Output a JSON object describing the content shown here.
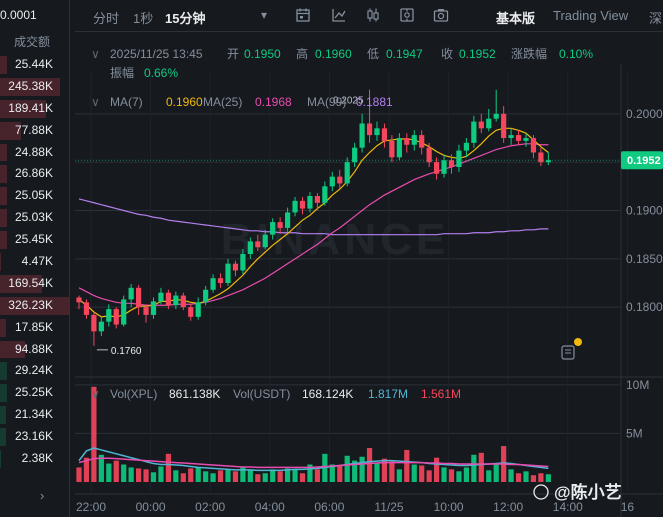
{
  "left_panel": {
    "top_value": "0.0001",
    "header": "成交额",
    "rows": [
      {
        "value": "25.44K",
        "side": "sell",
        "fill": 0.1
      },
      {
        "value": "245.38K",
        "side": "sell",
        "fill": 0.85
      },
      {
        "value": "189.41K",
        "side": "sell",
        "fill": 0.65
      },
      {
        "value": "77.88K",
        "side": "sell",
        "fill": 0.3
      },
      {
        "value": "24.88K",
        "side": "sell",
        "fill": 0.1
      },
      {
        "value": "26.86K",
        "side": "sell",
        "fill": 0.1
      },
      {
        "value": "25.05K",
        "side": "sell",
        "fill": 0.1
      },
      {
        "value": "25.03K",
        "side": "sell",
        "fill": 0.1
      },
      {
        "value": "25.45K",
        "side": "sell",
        "fill": 0.1
      },
      {
        "value": "4.47K",
        "side": "sell",
        "fill": 0.02
      },
      {
        "value": "169.54K",
        "side": "sell",
        "fill": 0.6
      },
      {
        "value": "326.23K",
        "side": "sell",
        "fill": 1.0
      },
      {
        "value": "17.85K",
        "side": "sell",
        "fill": 0.08
      },
      {
        "value": "94.88K",
        "side": "sell",
        "fill": 0.35
      },
      {
        "value": "29.24K",
        "side": "buy",
        "fill": 0.1
      },
      {
        "value": "25.25K",
        "side": "buy",
        "fill": 0.1
      },
      {
        "value": "21.34K",
        "side": "buy",
        "fill": 0.08
      },
      {
        "value": "23.16K",
        "side": "buy",
        "fill": 0.08
      },
      {
        "value": "2.38K",
        "side": "buy",
        "fill": 0.02
      }
    ],
    "arrow": "›"
  },
  "toolbar": {
    "items": [
      {
        "label": "分时",
        "active": false
      },
      {
        "label": "1秒",
        "active": false
      },
      {
        "label": "15分钟",
        "active": true
      }
    ],
    "dropdown": "▾",
    "tools": [
      "calendar-icon",
      "line-tool-icon",
      "candle-type-icon",
      "settings-icon",
      "camera-icon"
    ],
    "views": [
      {
        "label": "基本版",
        "active": true
      },
      {
        "label": "Trading View",
        "active": false
      },
      {
        "label": "深",
        "active": false
      }
    ]
  },
  "ohlc": {
    "time": "2025/11/25 13:45",
    "open_label": "开",
    "open": "0.1950",
    "high_label": "高",
    "high": "0.1960",
    "low_label": "低",
    "low": "0.1947",
    "close_label": "收",
    "close": "0.1952",
    "change_label": "涨跌幅",
    "change": "0.10%",
    "amp_label": "振幅",
    "amp": "0.66%"
  },
  "ma_legend": [
    {
      "label": "MA(7)",
      "value": "0.1960",
      "color": "#f0b90b"
    },
    {
      "label": "MA(25)",
      "value": "0.1968",
      "color": "#e84cb0"
    },
    {
      "label": "MA(99)",
      "value": "0.1881",
      "color": "#b47ff0"
    }
  ],
  "vol_legend": {
    "label1": "Vol(XPL)",
    "value1": "861.138K",
    "label2": "Vol(USDT)",
    "value2": "168.124K",
    "v3": "1.817M",
    "v3_color": "#4fb6d4",
    "v4": "1.561M",
    "v4_color": "#f6465d"
  },
  "watermark": "BINANCE",
  "collapse_toggle": "∨",
  "footer_watermark": "@陈小艺",
  "chart_data": {
    "type": "candlestick",
    "colors": {
      "up": "#0ecb81",
      "down": "#f6465d",
      "bg": "#161a1e",
      "grid": "#2b3139"
    },
    "ylim": [
      0.1735,
      0.2035
    ],
    "y_ticks": [
      0.2,
      0.195,
      0.19,
      0.185,
      0.18
    ],
    "y_tick_labels": [
      "0.2000",
      "0.195",
      "0.1900",
      "0.1850",
      "0.1800"
    ],
    "current_price": "0.1952",
    "high_marker": "0.2025",
    "low_marker": "0.1760",
    "x_labels": [
      "22:00",
      "00:00",
      "02:00",
      "04:00",
      "06:00",
      "11/25",
      "10:00",
      "12:00",
      "14:00",
      "16"
    ],
    "x_label_index": [
      0,
      8,
      16,
      24,
      32,
      40,
      48,
      56,
      64,
      72
    ],
    "candles": [
      [
        0.181,
        0.1805,
        0.1812,
        0.1798
      ],
      [
        0.1805,
        0.1792,
        0.1808,
        0.1788
      ],
      [
        0.1792,
        0.1775,
        0.1795,
        0.176
      ],
      [
        0.1775,
        0.1785,
        0.179,
        0.177
      ],
      [
        0.1785,
        0.1798,
        0.1803,
        0.178
      ],
      [
        0.1798,
        0.1782,
        0.18,
        0.1778
      ],
      [
        0.1782,
        0.1808,
        0.1812,
        0.178
      ],
      [
        0.1808,
        0.182,
        0.1824,
        0.18
      ],
      [
        0.182,
        0.18,
        0.1823,
        0.1792
      ],
      [
        0.18,
        0.1792,
        0.1803,
        0.1784
      ],
      [
        0.1792,
        0.1806,
        0.181,
        0.1788
      ],
      [
        0.1806,
        0.1815,
        0.182,
        0.1803
      ],
      [
        0.1815,
        0.1802,
        0.1818,
        0.1798
      ],
      [
        0.1802,
        0.1812,
        0.1816,
        0.1798
      ],
      [
        0.1812,
        0.18,
        0.1815,
        0.1797
      ],
      [
        0.18,
        0.179,
        0.1803,
        0.1786
      ],
      [
        0.179,
        0.1805,
        0.181,
        0.1787
      ],
      [
        0.1805,
        0.1818,
        0.1822,
        0.1802
      ],
      [
        0.1818,
        0.183,
        0.1834,
        0.1815
      ],
      [
        0.183,
        0.1825,
        0.1835,
        0.182
      ],
      [
        0.1825,
        0.1845,
        0.185,
        0.1822
      ],
      [
        0.1845,
        0.1838,
        0.1848,
        0.1832
      ],
      [
        0.1838,
        0.1855,
        0.186,
        0.1834
      ],
      [
        0.1855,
        0.1868,
        0.1872,
        0.185
      ],
      [
        0.1868,
        0.1862,
        0.1875,
        0.1858
      ],
      [
        0.1862,
        0.1875,
        0.188,
        0.186
      ],
      [
        0.1875,
        0.1888,
        0.1892,
        0.187
      ],
      [
        0.1888,
        0.1882,
        0.1893,
        0.1876
      ],
      [
        0.1882,
        0.1898,
        0.1903,
        0.1878
      ],
      [
        0.1898,
        0.191,
        0.1914,
        0.1894
      ],
      [
        0.191,
        0.1902,
        0.1914,
        0.1896
      ],
      [
        0.1902,
        0.1915,
        0.1919,
        0.1898
      ],
      [
        0.1915,
        0.1908,
        0.1918,
        0.19
      ],
      [
        0.1908,
        0.1925,
        0.193,
        0.1905
      ],
      [
        0.1925,
        0.1935,
        0.194,
        0.192
      ],
      [
        0.1935,
        0.1928,
        0.1942,
        0.1923
      ],
      [
        0.1928,
        0.195,
        0.1955,
        0.1925
      ],
      [
        0.195,
        0.1965,
        0.197,
        0.1945
      ],
      [
        0.1965,
        0.199,
        0.2,
        0.196
      ],
      [
        0.199,
        0.1978,
        0.2025,
        0.197
      ],
      [
        0.1978,
        0.1985,
        0.1992,
        0.1972
      ],
      [
        0.1985,
        0.1972,
        0.199,
        0.1965
      ],
      [
        0.1972,
        0.1955,
        0.1978,
        0.195
      ],
      [
        0.1955,
        0.1975,
        0.198,
        0.1952
      ],
      [
        0.1975,
        0.1968,
        0.198,
        0.196
      ],
      [
        0.1968,
        0.1978,
        0.1983,
        0.1962
      ],
      [
        0.1978,
        0.1965,
        0.1983,
        0.1958
      ],
      [
        0.1965,
        0.195,
        0.197,
        0.1945
      ],
      [
        0.195,
        0.1938,
        0.1955,
        0.1932
      ],
      [
        0.1938,
        0.1952,
        0.1958,
        0.1934
      ],
      [
        0.1952,
        0.1945,
        0.1958,
        0.1938
      ],
      [
        0.1945,
        0.1962,
        0.1968,
        0.194
      ],
      [
        0.1962,
        0.197,
        0.1975,
        0.1955
      ],
      [
        0.197,
        0.1992,
        0.1998,
        0.1965
      ],
      [
        0.1992,
        0.1985,
        0.2,
        0.198
      ],
      [
        0.1985,
        0.1995,
        0.2005,
        0.1982
      ],
      [
        0.1995,
        0.2,
        0.2025,
        0.1992
      ],
      [
        0.2,
        0.1975,
        0.2008,
        0.197
      ],
      [
        0.1975,
        0.1978,
        0.1985,
        0.1968
      ],
      [
        0.1978,
        0.1972,
        0.1983,
        0.1968
      ],
      [
        0.1972,
        0.1975,
        0.198,
        0.1966
      ],
      [
        0.1975,
        0.196,
        0.1978,
        0.1954
      ],
      [
        0.196,
        0.195,
        0.1965,
        0.1946
      ],
      [
        0.195,
        0.1952,
        0.196,
        0.1947
      ]
    ],
    "ma7": [
      0.1808,
      0.1802,
      0.1795,
      0.179,
      0.1791,
      0.179,
      0.1792,
      0.1797,
      0.1801,
      0.1801,
      0.1802,
      0.1806,
      0.1806,
      0.1808,
      0.1807,
      0.1805,
      0.1804,
      0.1806,
      0.181,
      0.1814,
      0.1819,
      0.1826,
      0.1833,
      0.1842,
      0.185,
      0.1857,
      0.1864,
      0.187,
      0.1876,
      0.1883,
      0.189,
      0.1895,
      0.1902,
      0.1908,
      0.1916,
      0.1922,
      0.193,
      0.194,
      0.1952,
      0.196,
      0.1967,
      0.1972,
      0.1973,
      0.1974,
      0.1974,
      0.1973,
      0.197,
      0.1966,
      0.1961,
      0.1957,
      0.1955,
      0.1954,
      0.1956,
      0.1962,
      0.1969,
      0.1977,
      0.1983,
      0.1985,
      0.1985,
      0.1983,
      0.198,
      0.1973,
      0.1966,
      0.196
    ],
    "ma25": [
      0.182,
      0.1816,
      0.1812,
      0.1809,
      0.1807,
      0.1805,
      0.1804,
      0.1804,
      0.1803,
      0.1802,
      0.1802,
      0.1802,
      0.1802,
      0.1803,
      0.1803,
      0.1803,
      0.1804,
      0.1805,
      0.1807,
      0.1809,
      0.1812,
      0.1815,
      0.1818,
      0.1822,
      0.1826,
      0.183,
      0.1835,
      0.184,
      0.1845,
      0.185,
      0.1855,
      0.186,
      0.1865,
      0.1871,
      0.1877,
      0.1882,
      0.1888,
      0.1894,
      0.19,
      0.1906,
      0.1911,
      0.1916,
      0.192,
      0.1924,
      0.1928,
      0.1932,
      0.1935,
      0.1938,
      0.194,
      0.1943,
      0.1945,
      0.1948,
      0.1951,
      0.1954,
      0.1957,
      0.196,
      0.1963,
      0.1965,
      0.1967,
      0.1968,
      0.1969,
      0.1969,
      0.1968,
      0.1968
    ],
    "ma99": [
      0.1912,
      0.191,
      0.1908,
      0.1906,
      0.1904,
      0.1902,
      0.19,
      0.1898,
      0.1896,
      0.1895,
      0.1893,
      0.1892,
      0.189,
      0.1889,
      0.1888,
      0.1887,
      0.1886,
      0.1885,
      0.1884,
      0.1883,
      0.1882,
      0.1881,
      0.188,
      0.1879,
      0.1879,
      0.1878,
      0.1878,
      0.1877,
      0.1877,
      0.1877,
      0.1876,
      0.1876,
      0.1876,
      0.1876,
      0.1875,
      0.1875,
      0.1875,
      0.1875,
      0.1875,
      0.1875,
      0.1875,
      0.1875,
      0.1875,
      0.1875,
      0.1875,
      0.1875,
      0.1875,
      0.1875,
      0.1875,
      0.1876,
      0.1876,
      0.1876,
      0.1876,
      0.1877,
      0.1877,
      0.1877,
      0.1878,
      0.1878,
      0.1879,
      0.1879,
      0.188,
      0.188,
      0.1881,
      0.1881
    ],
    "volume": {
      "ylim": [
        0,
        10500000
      ],
      "y_ticks": [
        10000000,
        5000000
      ],
      "y_tick_labels": [
        "10M",
        "5M"
      ],
      "values": [
        1500000,
        2500000,
        9800000,
        2800000,
        1900000,
        2200000,
        1800000,
        1500000,
        1400000,
        1300000,
        1000000,
        1600000,
        2900000,
        1200000,
        900000,
        1400000,
        1500000,
        1100000,
        900000,
        1200000,
        1300000,
        1100000,
        1500000,
        1200000,
        800000,
        900000,
        1300000,
        1100000,
        1400000,
        1300000,
        900000,
        1800000,
        1300000,
        2900000,
        1800000,
        1700000,
        2700000,
        2200000,
        2600000,
        3500000,
        2000000,
        2400000,
        2100000,
        1300000,
        3300000,
        1800000,
        1700000,
        1200000,
        2500000,
        1500000,
        1300000,
        1100000,
        1500000,
        2800000,
        3000000,
        1200000,
        1900000,
        3700000,
        1300000,
        900000,
        1100000,
        700000,
        900000,
        800000
      ],
      "ma1": [
        2200000,
        3200000,
        3500000,
        3300000,
        3100000,
        2900000,
        2700000,
        2500000,
        2300000,
        2100000,
        1900000,
        1800000,
        1800000,
        1750000,
        1700000,
        1600000,
        1500000,
        1450000,
        1400000,
        1350000,
        1300000,
        1250000,
        1250000,
        1250000,
        1200000,
        1200000,
        1200000,
        1200000,
        1250000,
        1300000,
        1300000,
        1350000,
        1400000,
        1500000,
        1600000,
        1700000,
        1800000,
        1900000,
        2000000,
        2100000,
        2150000,
        2200000,
        2200000,
        2150000,
        2100000,
        2050000,
        2000000,
        1900000,
        1850000,
        1800000,
        1750000,
        1700000,
        1700000,
        1750000,
        1800000,
        1850000,
        1900000,
        1950000,
        1900000,
        1800000,
        1700000,
        1600000,
        1500000,
        1400000
      ],
      "ma2": [
        2000000,
        2200000,
        2400000,
        2450000,
        2450000,
        2400000,
        2350000,
        2300000,
        2250000,
        2200000,
        2150000,
        2100000,
        2050000,
        2000000,
        1950000,
        1900000,
        1850000,
        1800000,
        1750000,
        1700000,
        1650000,
        1600000,
        1550000,
        1550000,
        1500000,
        1500000,
        1500000,
        1500000,
        1500000,
        1500000,
        1500000,
        1500000,
        1550000,
        1600000,
        1650000,
        1700000,
        1750000,
        1800000,
        1850000,
        1900000,
        1950000,
        2000000,
        2000000,
        2000000,
        2000000,
        2000000,
        2000000,
        1950000,
        1950000,
        1900000,
        1900000,
        1850000,
        1850000,
        1850000,
        1850000,
        1850000,
        1850000,
        1850000,
        1800000,
        1800000,
        1750000,
        1700000,
        1650000,
        1600000
      ]
    }
  }
}
